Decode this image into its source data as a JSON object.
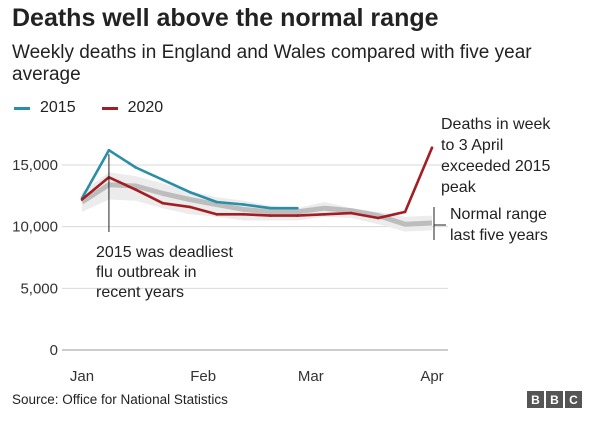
{
  "header": {
    "title": "Deaths well above the normal range",
    "subtitle": "Weekly deaths in England and Wales compared with five year average"
  },
  "footer": {
    "source": "Source: Office for National Statistics",
    "logo_letters": [
      "B",
      "B",
      "C"
    ]
  },
  "colors": {
    "series_2015": "#2a8ea6",
    "series_2020": "#a31e22",
    "normal_range": "#c8c8c8",
    "average": "#bdbdbd"
  },
  "chart_data": {
    "type": "line",
    "title": "Deaths well above the normal range",
    "xlabel": "",
    "ylabel": "",
    "ylim": [
      0,
      17000
    ],
    "yticks": [
      {
        "value": 0,
        "label": "0"
      },
      {
        "value": 5000,
        "label": "5,000"
      },
      {
        "value": 10000,
        "label": "10,000"
      },
      {
        "value": 15000,
        "label": "15,000"
      }
    ],
    "xlim": [
      1,
      15.5
    ],
    "xticks": [
      {
        "week": 1,
        "label": "Jan"
      },
      {
        "week": 5.5,
        "label": "Feb"
      },
      {
        "week": 9.5,
        "label": "Mar"
      },
      {
        "week": 14,
        "label": "Apr"
      }
    ],
    "grid": true,
    "legend": "top-left",
    "series": [
      {
        "name": "2015",
        "color": "#2a8ea6",
        "weeks": [
          1,
          2,
          3,
          4,
          5,
          6,
          7,
          8,
          9
        ],
        "values": [
          12300,
          16200,
          14800,
          13800,
          12800,
          12000,
          11800,
          11500,
          11500
        ]
      },
      {
        "name": "2020",
        "color": "#a31e22",
        "weeks": [
          1,
          2,
          3,
          4,
          5,
          6,
          7,
          8,
          9,
          10,
          11,
          12,
          13,
          14
        ],
        "values": [
          12200,
          14000,
          13000,
          11900,
          11600,
          11000,
          11000,
          10900,
          10900,
          11000,
          11100,
          10700,
          11200,
          16400
        ]
      }
    ],
    "normal_range": {
      "weeks": [
        1,
        2,
        3,
        4,
        5,
        6,
        7,
        8,
        9,
        10,
        11,
        12,
        13,
        14
      ],
      "upper": [
        12800,
        14400,
        14100,
        13500,
        12900,
        12400,
        12100,
        11700,
        11500,
        12000,
        11500,
        11200,
        10800,
        10900
      ],
      "lower": [
        11200,
        12200,
        12100,
        11500,
        11000,
        10800,
        10500,
        10500,
        10500,
        10800,
        10700,
        10200,
        9600,
        9700
      ],
      "average": [
        12000,
        13400,
        13300,
        12700,
        12200,
        11800,
        11400,
        11200,
        11200,
        11500,
        11300,
        10900,
        10200,
        10300
      ]
    },
    "annotations": [
      {
        "id": "flu",
        "lines": [
          "2015 was deadliest",
          "flu outbreak in",
          "recent years"
        ]
      },
      {
        "id": "april",
        "lines": [
          "Deaths in week",
          "to 3 April",
          "exceeded 2015",
          "peak"
        ]
      },
      {
        "id": "normal",
        "lines": [
          "Normal range",
          "last five years"
        ]
      }
    ]
  }
}
